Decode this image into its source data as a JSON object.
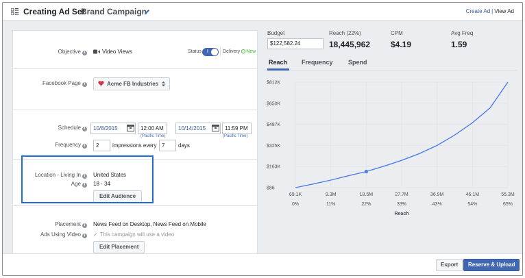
{
  "header": {
    "title": "Creating Ad Set",
    "campaign": "Brand Campaign",
    "create_ad": "Create Ad",
    "separator": "|",
    "view_ad": "View Ad"
  },
  "objective": {
    "label": "Objective",
    "value": "Video Views",
    "status_label": "Status",
    "delivery_label": "Delivery",
    "delivery_value": "New"
  },
  "page": {
    "label": "Facebook Page",
    "value": "Acme FB Industries"
  },
  "schedule": {
    "label": "Schedule",
    "start_date": "10/8/2015",
    "start_time": "12:00 AM",
    "end_date": "10/14/2015",
    "end_time": "11:59 PM",
    "timezone": "(Pacific Time)"
  },
  "frequency": {
    "label": "Frequency",
    "impressions": "2",
    "impressions_text": "impressions every",
    "days": "7",
    "days_text": "days"
  },
  "audience": {
    "location_label": "Location - Living In",
    "location_value": "United States",
    "age_label": "Age",
    "age_value": "18 - 34",
    "edit_button": "Edit Audience"
  },
  "placement": {
    "label": "Placement",
    "value": "News Feed on Desktop, News Feed on Mobile",
    "video_label": "Ads Using Video",
    "video_value": "This campaign will use a video",
    "edit_button": "Edit Placement"
  },
  "stats": {
    "budget_label": "Budget",
    "budget_value": "$122,582.24",
    "reach_label": "Reach (22%)",
    "reach_value": "18,445,962",
    "cpm_label": "CPM",
    "cpm_value": "$4.19",
    "freq_label": "Avg Freq",
    "freq_value": "1.59"
  },
  "tabs": [
    "Reach",
    "Frequency",
    "Spend"
  ],
  "active_tab": "Reach",
  "footer": {
    "export": "Export",
    "reserve": "Reserve & Upload"
  },
  "colors": {
    "accent": "#4267b2",
    "line": "#4f7fe6",
    "highlight_box": "#1f6ed4"
  },
  "chart_data": {
    "type": "line",
    "y_ticks": [
      "$812K",
      "$650K",
      "$487K",
      "$325K",
      "$163K",
      "$86"
    ],
    "x_ticks": [
      "69.1K",
      "9.3M",
      "18.5M",
      "27.7M",
      "36.9M",
      "46.1M",
      "55.3M"
    ],
    "x_pct_ticks": [
      "0%",
      "11%",
      "22%",
      "33%",
      "43%",
      "54%",
      "65%"
    ],
    "xlabel": "Reach",
    "xlim": [
      69100,
      55300000
    ],
    "ylim": [
      86,
      812000
    ],
    "x": [
      69100,
      4700000,
      9300000,
      13900000,
      18500000,
      23100000,
      27700000,
      32300000,
      36900000,
      41500000,
      46100000,
      50700000,
      55300000
    ],
    "y": [
      86,
      28000,
      58000,
      92000,
      124000,
      165000,
      210000,
      262000,
      325000,
      405000,
      500000,
      615000,
      812000
    ],
    "marker": {
      "x": 18500000,
      "y": 124000
    },
    "grid": true
  }
}
